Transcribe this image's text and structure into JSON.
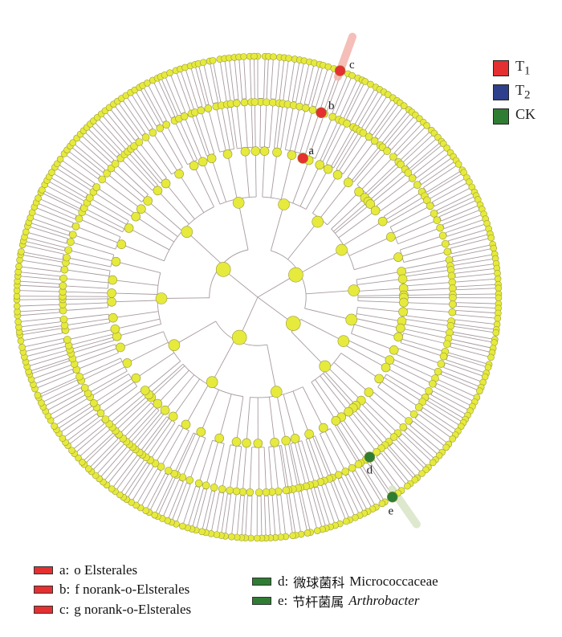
{
  "colors": {
    "node": "#e6ea3c",
    "node_stroke": "#9a9a3a",
    "branch": "#a89b9e",
    "t1": "#e43030",
    "t2": "#2e3f8c",
    "ck": "#2f7d32",
    "t1_highlight": "#f4b3ac",
    "ck_highlight": "#d9e4c6"
  },
  "groups_legend": [
    {
      "label": "T",
      "sub": "1",
      "color_key": "t1"
    },
    {
      "label": "T",
      "sub": "2",
      "color_key": "t2"
    },
    {
      "label": "CK",
      "sub": "",
      "color_key": "ck"
    }
  ],
  "markers": [
    {
      "letter": "a",
      "group": "t1"
    },
    {
      "letter": "b",
      "group": "t1"
    },
    {
      "letter": "c",
      "group": "t1"
    },
    {
      "letter": "d",
      "group": "ck"
    },
    {
      "letter": "e",
      "group": "ck"
    }
  ],
  "taxa_legend": [
    {
      "prefix": "a:",
      "cn": "",
      "text": "o Elsterales",
      "italic": false,
      "color_key": "t1"
    },
    {
      "prefix": "b:",
      "cn": "",
      "text": "f norank-o-Elsterales",
      "italic": false,
      "color_key": "t1"
    },
    {
      "prefix": "c:",
      "cn": "",
      "text": "g norank-o-Elsterales",
      "italic": false,
      "color_key": "t1"
    },
    {
      "prefix": "d:",
      "cn": "微球菌科",
      "text": "Micrococcaceae",
      "italic": false,
      "color_key": "ck"
    },
    {
      "prefix": "e:",
      "cn": "节杆菌属",
      "text": "Arthrobacter",
      "italic": true,
      "color_key": "ck"
    }
  ]
}
